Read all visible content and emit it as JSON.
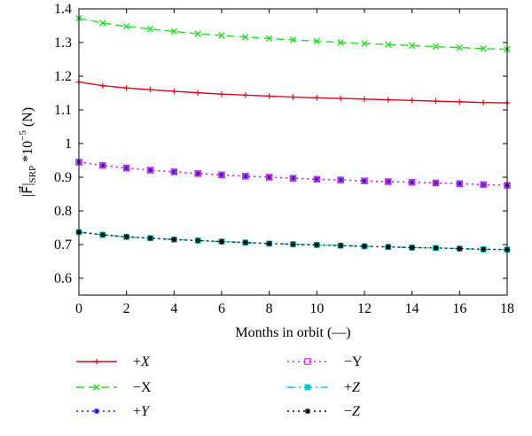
{
  "chart_data": {
    "type": "line",
    "xlabel": "Months in orbit (—)",
    "ylabel": {
      "main": "|F⃗|",
      "sub": "SRP",
      "mid": "*10",
      "sup": "−5",
      "unit": "(N)"
    },
    "xlim": [
      0,
      18
    ],
    "ylim": [
      0.55,
      1.4
    ],
    "xticks": [
      0,
      2,
      4,
      6,
      8,
      10,
      12,
      14,
      16,
      18
    ],
    "yticks": [
      0.6,
      0.7,
      0.8,
      0.9,
      1,
      1.1,
      1.2,
      1.3,
      1.4
    ],
    "ytick_labels": [
      "0.6",
      "0.7",
      "0.8",
      "0.9",
      "1",
      "1.1",
      "1.2",
      "1.3",
      "1.4"
    ],
    "x": [
      0,
      1,
      2,
      3,
      4,
      5,
      6,
      7,
      8,
      9,
      10,
      11,
      12,
      13,
      14,
      15,
      16,
      17,
      18
    ],
    "grid": false,
    "legend_position": "below",
    "series": [
      {
        "name": "+X",
        "sign": "+",
        "letter": "X",
        "italic": true,
        "color": "#e8001c",
        "dash": "",
        "marker": "plus",
        "values": [
          1.183,
          1.172,
          1.165,
          1.16,
          1.155,
          1.151,
          1.147,
          1.144,
          1.141,
          1.138,
          1.136,
          1.134,
          1.132,
          1.13,
          1.128,
          1.126,
          1.124,
          1.122,
          1.121
        ]
      },
      {
        "name": "−X",
        "sign": "−",
        "letter": "X",
        "italic": false,
        "color": "#22dd22",
        "dash": "9,5",
        "marker": "x",
        "values": [
          1.372,
          1.358,
          1.348,
          1.34,
          1.333,
          1.326,
          1.321,
          1.316,
          1.312,
          1.308,
          1.304,
          1.3,
          1.297,
          1.294,
          1.291,
          1.288,
          1.285,
          1.282,
          1.28
        ]
      },
      {
        "name": "+Y",
        "sign": "+",
        "letter": "Y",
        "italic": true,
        "color": "#1a1acc",
        "dash": "2,4",
        "marker": "star",
        "values": [
          0.945,
          0.935,
          0.927,
          0.921,
          0.916,
          0.911,
          0.907,
          0.903,
          0.9,
          0.897,
          0.894,
          0.892,
          0.889,
          0.887,
          0.885,
          0.883,
          0.881,
          0.878,
          0.876
        ]
      },
      {
        "name": "−Y",
        "sign": "−",
        "letter": "Y",
        "italic": false,
        "color": "#dd22dd",
        "dash": "2,4",
        "marker": "square",
        "values": [
          0.945,
          0.935,
          0.927,
          0.921,
          0.916,
          0.911,
          0.907,
          0.903,
          0.9,
          0.897,
          0.894,
          0.892,
          0.889,
          0.887,
          0.885,
          0.883,
          0.881,
          0.878,
          0.876
        ]
      },
      {
        "name": "+Z",
        "sign": "+",
        "letter": "Z",
        "italic": true,
        "color": "#00cccc",
        "dash": "9,4,2,4",
        "marker": "filled-square",
        "values": [
          0.737,
          0.729,
          0.723,
          0.719,
          0.715,
          0.712,
          0.709,
          0.706,
          0.703,
          0.701,
          0.699,
          0.697,
          0.695,
          0.693,
          0.691,
          0.69,
          0.688,
          0.686,
          0.685
        ]
      },
      {
        "name": "−Z",
        "sign": "−",
        "letter": "Z",
        "italic": true,
        "color": "#000000",
        "dash": "2,4",
        "marker": "star",
        "values": [
          0.737,
          0.729,
          0.723,
          0.719,
          0.715,
          0.712,
          0.709,
          0.706,
          0.703,
          0.701,
          0.699,
          0.697,
          0.695,
          0.693,
          0.691,
          0.69,
          0.688,
          0.686,
          0.685
        ]
      }
    ]
  }
}
